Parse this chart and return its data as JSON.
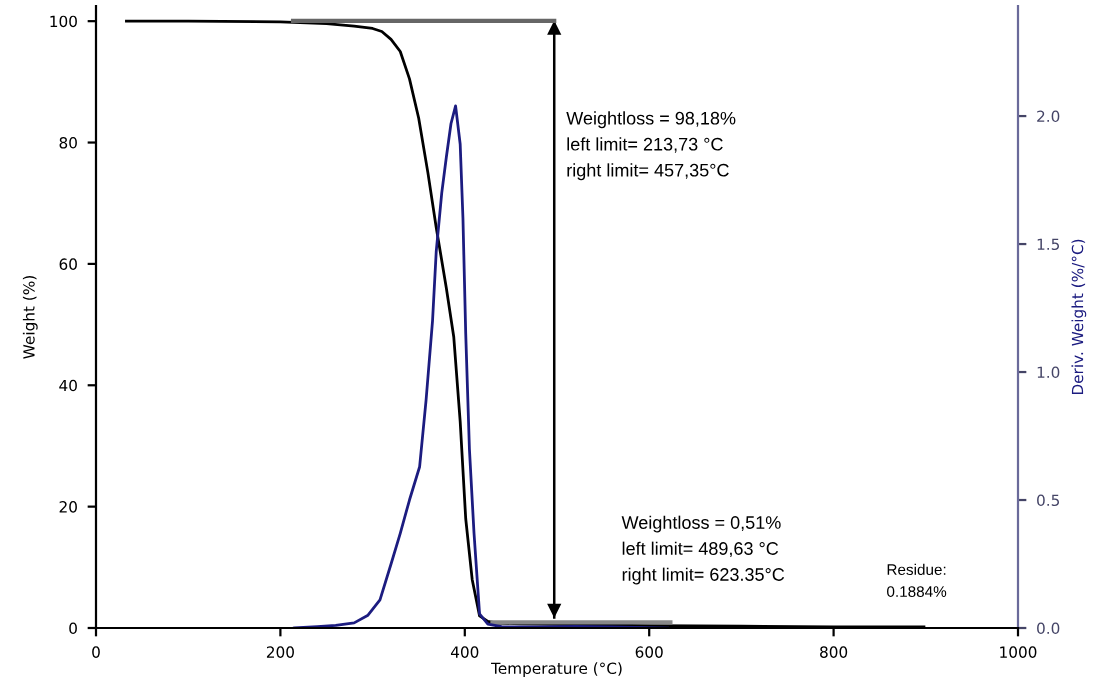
{
  "chart_data": {
    "type": "line",
    "xlabel": "Temperature (°C)",
    "ylabel": "Weight (%)",
    "y2label": "Deriv. Weight (%/°C)",
    "xlim": [
      0,
      1000
    ],
    "xticks": [
      0,
      200,
      400,
      600,
      800,
      1000
    ],
    "ylim": [
      0,
      102.5
    ],
    "yticks": [
      0,
      20,
      40,
      60,
      80,
      100
    ],
    "y2lim": [
      0,
      2.43
    ],
    "y2ticks": [
      {
        "value": 0,
        "label": "0.0"
      },
      0.5,
      {
        "value": 1,
        "label": "1.0"
      },
      1.5,
      {
        "value": 2,
        "label": "2.0"
      }
    ],
    "grid": false,
    "legend": false,
    "marker": "none",
    "line_style": "solid",
    "series": [
      {
        "color": "#000000",
        "x": [
          33,
          100,
          200,
          250,
          280,
          300,
          310,
          320,
          330,
          340,
          350,
          360,
          369,
          380,
          388,
          395,
          401,
          408,
          416,
          425,
          435,
          460,
          500,
          600,
          700,
          800,
          898
        ],
        "values": [
          100,
          100,
          99.9,
          99.6,
          99.2,
          98.8,
          98.3,
          97,
          95,
          90.5,
          84,
          75,
          66,
          56,
          48,
          34,
          18,
          8,
          2,
          1.1,
          0.8,
          0.7,
          0.6,
          0.4,
          0.3,
          0.2,
          0.2
        ]
      },
      {
        "color": "#1c1c80",
        "axis": "y2",
        "x": [
          215,
          240,
          260,
          280,
          295,
          308,
          320,
          330,
          340,
          351,
          358,
          365,
          369,
          375,
          380,
          385,
          390,
          395,
          398,
          401,
          405,
          410,
          416,
          425,
          440,
          480,
          520,
          560,
          620
        ],
        "values": [
          0,
          0.005,
          0.01,
          0.02,
          0.05,
          0.11,
          0.25,
          0.37,
          0.5,
          0.63,
          0.89,
          1.2,
          1.47,
          1.7,
          1.84,
          1.97,
          2.04,
          1.89,
          1.6,
          1.15,
          0.7,
          0.37,
          0.055,
          0.015,
          0.005,
          0.004,
          0.006,
          0.004,
          0
        ]
      }
    ],
    "ref_lines": [
      {
        "axis": "x",
        "value": 497,
        "color": "#000000"
      }
    ],
    "annotations": [
      "Weightloss = 98,18%\nleft limit= 213,73 °C\nright limit= 457,35°C",
      "Weightloss = 0,51%\nleft limit= 489,63 °C\nright limit= 623.35°C",
      "Residue:\n0.1884%"
    ]
  }
}
